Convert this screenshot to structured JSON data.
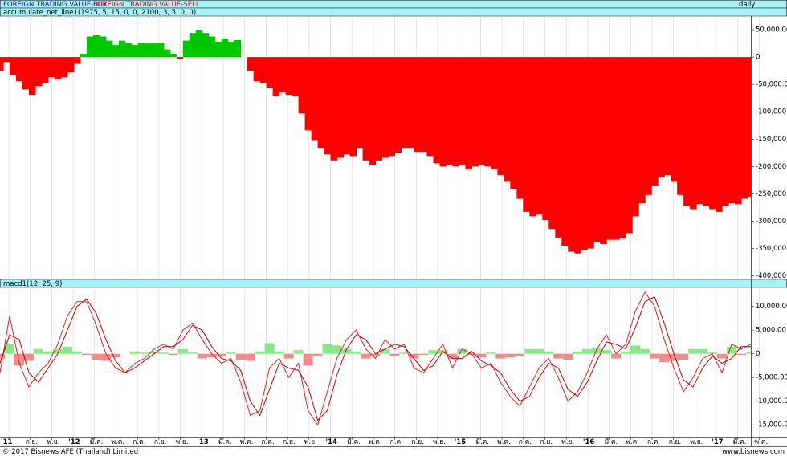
{
  "header": {
    "buy_label": "FOREIGN TRADING VALUE-BUY",
    "sell_label": "FOREIGN TRADING VALUE-SELL",
    "period": "daily"
  },
  "footer": {
    "copyright": "© 2017 Bisnews AFE (Thailand) Limited",
    "site": "www.bisnews.com"
  },
  "x_axis": {
    "categories": [
      "'11",
      "ก.ย.",
      "พ.ย.",
      "'12",
      "มี.ค.",
      "พ.ค.",
      "ก.ค.",
      "ก.ย.",
      "พ.ย.",
      "'13",
      "มี.ค.",
      "พ.ค.",
      "ก.ค.",
      "ก.ย.",
      "พ.ย.",
      "'14",
      "มี.ค.",
      "พ.ค.",
      "ก.ค.",
      "ก.ย.",
      "พ.ย.",
      "'15",
      "มี.ค.",
      "พ.ค.",
      "ก.ค.",
      "ก.ย.",
      "พ.ย.",
      "'16",
      "มี.ค.",
      "พ.ค.",
      "ก.ค.",
      "ก.ย.",
      "พ.ย.",
      "'17",
      "มี.ค.",
      "พ.ค."
    ]
  },
  "chart_data": [
    {
      "type": "area",
      "title": "accumulate_net_line1(1975, 5, 15, 0, 0, 2100, 3, 5, 0, 0)",
      "positive_color": "#00c800",
      "negative_color": "#ff0000",
      "ylim": [
        75000,
        -405000
      ],
      "yticks": [
        {
          "value": 50000,
          "label": "50,000.00"
        },
        0,
        {
          "value": -50000,
          "label": "-50,000.00"
        },
        {
          "value": -100000,
          "label": "-100,000.00"
        },
        {
          "value": -150000,
          "label": "-150,000.00"
        },
        {
          "value": -200000,
          "label": "-200,000.00"
        },
        {
          "value": -250000,
          "label": "-250,000.00"
        },
        {
          "value": -300000,
          "label": "-300,000.00"
        },
        {
          "value": -350000,
          "label": "-350,000.00"
        },
        {
          "value": -400000,
          "label": "-400,000.00"
        }
      ],
      "values": [
        -25000,
        -9000,
        -33000,
        -44000,
        -59000,
        -69000,
        -53000,
        -48000,
        -37000,
        -41000,
        -37000,
        -28000,
        -12500,
        6000,
        37500,
        40600,
        37500,
        30000,
        22000,
        30000,
        25000,
        22000,
        26500,
        25000,
        25000,
        26500,
        14000,
        6000,
        -3000,
        30000,
        44000,
        50000,
        44000,
        37500,
        28000,
        34000,
        28000,
        31000,
        0,
        -25000,
        -44000,
        -48000,
        -56000,
        -72000,
        -64000,
        -69000,
        -72000,
        -103000,
        -134000,
        -153000,
        -166000,
        -178000,
        -189000,
        -184000,
        -178000,
        -181000,
        -166000,
        -189000,
        -197000,
        -189000,
        -184000,
        -181000,
        -175000,
        -166000,
        -166000,
        -173000,
        -173000,
        -181000,
        -194000,
        -200000,
        -197000,
        -200000,
        -197000,
        -205000,
        -200000,
        -197000,
        -200000,
        -205000,
        -216000,
        -228000,
        -241000,
        -259000,
        -283000,
        -291000,
        -288000,
        -298000,
        -314000,
        -330000,
        -345000,
        -356000,
        -359000,
        -353000,
        -350000,
        -337500,
        -342000,
        -334000,
        -334000,
        -331000,
        -322000,
        -291000,
        -267000,
        -252000,
        -236000,
        -220000,
        -216000,
        -228000,
        -252000,
        -272000,
        -278000,
        -269000,
        -272000,
        -278000,
        -283000,
        -272000,
        -267000,
        -269000,
        -259000,
        -256000
      ]
    },
    {
      "type": "macd",
      "title": "macd1(12, 25, 9)",
      "ylim": [
        14000,
        -17500
      ],
      "yticks": [
        {
          "value": 10000,
          "label": "10,000.00"
        },
        {
          "value": 5000,
          "label": "5,000.00"
        },
        0,
        {
          "value": -5000,
          "label": "-5,000.00"
        },
        {
          "value": -10000,
          "label": "-10,000.00"
        },
        {
          "value": -15000,
          "label": "-15,000.00"
        }
      ],
      "series": [
        {
          "color": "#e02020",
          "values": [
            -4000,
            8000,
            -2000,
            -7000,
            -4000,
            -2000,
            2000,
            8000,
            11000,
            11000,
            6000,
            0,
            -3000,
            -4000,
            -2000,
            -1000,
            1000,
            2000,
            1000,
            5000,
            6500,
            3000,
            0,
            -2000,
            -1000,
            -6000,
            -13000,
            -12000,
            -3000,
            -1000,
            -5000,
            -2000,
            -12000,
            -15000,
            -8000,
            -1000,
            3000,
            5000,
            1000,
            -1000,
            3000,
            1000,
            2000,
            -3000,
            -4000,
            -1000,
            2000,
            -3000,
            1000,
            0,
            -3000,
            -2000,
            -6000,
            -9000,
            -11000,
            -7000,
            -3000,
            -1000,
            -5000,
            -10000,
            -8000,
            -4000,
            1000,
            4000,
            0,
            2000,
            9000,
            13000,
            10000,
            3000,
            -3000,
            -8000,
            -5000,
            -1000,
            0,
            -4000,
            2000,
            1000,
            2000
          ]
        },
        {
          "color": "#c00000",
          "values": [
            -2000,
            4000,
            3000,
            -4000,
            -6000,
            -3000,
            0,
            5000,
            10000,
            11500,
            8500,
            3000,
            -1500,
            -4000,
            -3000,
            -1500,
            0,
            1500,
            1500,
            3000,
            6000,
            5000,
            1500,
            -1000,
            -1500,
            -3500,
            -10000,
            -13000,
            -7500,
            -2000,
            -3000,
            -3500,
            -7000,
            -14000,
            -12000,
            -4500,
            1000,
            4000,
            3000,
            0,
            1000,
            2000,
            1500,
            -1000,
            -3500,
            -2500,
            500,
            -1000,
            -1000,
            500,
            -1500,
            -2500,
            -4000,
            -7500,
            -10000,
            -9000,
            -5000,
            -2000,
            -3000,
            -7500,
            -9000,
            -6000,
            -1500,
            2500,
            2000,
            1000,
            5500,
            11000,
            12000,
            6500,
            0,
            -5500,
            -7000,
            -3000,
            -500,
            -2000,
            -1000,
            1500,
            1500
          ]
        }
      ],
      "histogram": {
        "positive_color": "#86e886",
        "negative_color": "#f48a8a",
        "values": [
          -1000,
          2000,
          -2500,
          -1500,
          1000,
          500,
          1000,
          1500,
          500,
          -250,
          -1250,
          -1500,
          -750,
          0,
          500,
          250,
          500,
          250,
          -250,
          1000,
          250,
          -1000,
          -750,
          -500,
          250,
          -1250,
          -1500,
          500,
          2250,
          500,
          -1000,
          750,
          -2500,
          -500,
          2000,
          1750,
          1000,
          500,
          -1000,
          -500,
          1000,
          -500,
          250,
          -1000,
          -250,
          750,
          750,
          -1000,
          1000,
          -250,
          -750,
          250,
          -1000,
          -750,
          -500,
          1000,
          1000,
          500,
          -1000,
          -1250,
          500,
          1000,
          1250,
          750,
          -1000,
          500,
          1750,
          1000,
          -1000,
          -1750,
          -1500,
          -1250,
          1000,
          1000,
          250,
          -1000,
          1500,
          -250,
          250
        ]
      }
    }
  ]
}
